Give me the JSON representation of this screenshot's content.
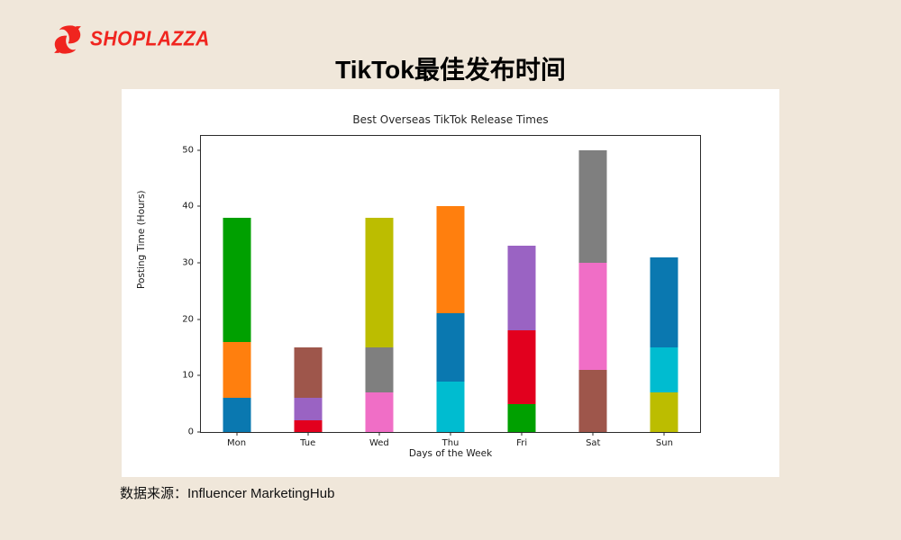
{
  "brand": {
    "name": "SHOPLAZZA",
    "color": "#f0251f"
  },
  "page_title": "TikTok最佳发布时间",
  "source_note": "数据来源：Influencer MarketingHub",
  "chart_data": {
    "type": "bar",
    "stacked": true,
    "title": "Best Overseas TikTok Release Times",
    "xlabel": "Days of the Week",
    "ylabel": "Posting Time (Hours)",
    "ylim": [
      0,
      52.5
    ],
    "yticks": [
      0,
      10,
      20,
      30,
      40,
      50
    ],
    "grid": false,
    "legend": "none",
    "categories": [
      "Mon",
      "Tue",
      "Wed",
      "Thu",
      "Fri",
      "Sat",
      "Sun"
    ],
    "palette": {
      "blue": "#0a78b0",
      "orange": "#ff7f0e",
      "green": "#00a000",
      "red": "#e2001e",
      "purple": "#9a63c3",
      "brown": "#9e564b",
      "pink": "#f06ec6",
      "gray": "#7f7f7f",
      "olive": "#bcbd00",
      "cyan": "#00bcd0"
    },
    "bars": [
      {
        "day": "Mon",
        "total": 38,
        "segments": [
          {
            "color": "blue",
            "from": 0,
            "to": 6,
            "value": 6
          },
          {
            "color": "orange",
            "from": 6,
            "to": 16,
            "value": 10
          },
          {
            "color": "green",
            "from": 16,
            "to": 38,
            "value": 22
          }
        ]
      },
      {
        "day": "Tue",
        "total": 15,
        "segments": [
          {
            "color": "red",
            "from": 0,
            "to": 2,
            "value": 2
          },
          {
            "color": "purple",
            "from": 2,
            "to": 6,
            "value": 4
          },
          {
            "color": "brown",
            "from": 6,
            "to": 15,
            "value": 9
          }
        ]
      },
      {
        "day": "Wed",
        "total": 38,
        "segments": [
          {
            "color": "pink",
            "from": 0,
            "to": 7,
            "value": 7
          },
          {
            "color": "gray",
            "from": 7,
            "to": 15,
            "value": 8
          },
          {
            "color": "olive",
            "from": 15,
            "to": 38,
            "value": 23
          }
        ]
      },
      {
        "day": "Thu",
        "total": 40,
        "segments": [
          {
            "color": "cyan",
            "from": 0,
            "to": 9,
            "value": 9
          },
          {
            "color": "blue",
            "from": 9,
            "to": 21,
            "value": 12
          },
          {
            "color": "orange",
            "from": 21,
            "to": 40,
            "value": 19
          }
        ]
      },
      {
        "day": "Fri",
        "total": 33,
        "segments": [
          {
            "color": "green",
            "from": 0,
            "to": 5,
            "value": 5
          },
          {
            "color": "red",
            "from": 5,
            "to": 18,
            "value": 13
          },
          {
            "color": "purple",
            "from": 18,
            "to": 33,
            "value": 15
          }
        ]
      },
      {
        "day": "Sat",
        "total": 50,
        "segments": [
          {
            "color": "brown",
            "from": 0,
            "to": 11,
            "value": 11
          },
          {
            "color": "pink",
            "from": 11,
            "to": 30,
            "value": 19
          },
          {
            "color": "gray",
            "from": 30,
            "to": 50,
            "value": 20
          }
        ]
      },
      {
        "day": "Sun",
        "total": 31,
        "segments": [
          {
            "color": "olive",
            "from": 0,
            "to": 7,
            "value": 7
          },
          {
            "color": "cyan",
            "from": 7,
            "to": 15,
            "value": 8
          },
          {
            "color": "blue",
            "from": 15,
            "to": 31,
            "value": 16
          }
        ]
      }
    ]
  },
  "colors": {
    "background": "#f0e7da",
    "panel": "#ffffff",
    "axis": "#2b2b2b",
    "text": "#1a1a1a"
  }
}
